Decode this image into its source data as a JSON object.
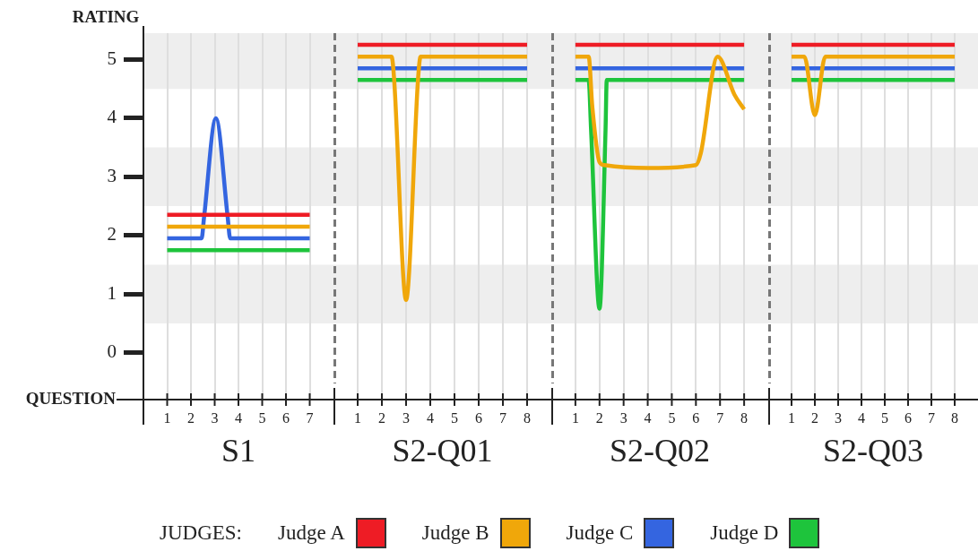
{
  "chart_data": [
    {
      "type": "line",
      "title": "S1",
      "ylabel": "RATING",
      "xlabel": "QUESTION",
      "legend_title": "JUDGES:",
      "legend": "bottom",
      "grid": "x",
      "line_style": "solid",
      "marker": "none",
      "xlim": [
        0,
        8
      ],
      "xticks": [
        1,
        2,
        3,
        4,
        5,
        6,
        7
      ],
      "ylim": [
        -0.8,
        5.45
      ],
      "yticks": [
        0,
        1,
        2,
        3,
        4,
        5
      ],
      "bands": [
        {
          "axis": "y",
          "from": 0.5,
          "to": 1.5,
          "color": "#eeeeee"
        },
        {
          "axis": "y",
          "from": 2.5,
          "to": 3.5,
          "color": "#eeeeee"
        },
        {
          "axis": "y",
          "from": 4.5,
          "to": 5.45,
          "color": "#eeeeee"
        }
      ],
      "series": [
        {
          "name": "Judge A",
          "color": "#ee1c25",
          "x": [
            1,
            7
          ],
          "values": [
            2.35,
            2.35
          ]
        },
        {
          "name": "Judge B",
          "color": "#f0a70a",
          "x": [
            1,
            7
          ],
          "values": [
            2.15,
            2.15
          ]
        },
        {
          "name": "Judge C",
          "color": "#3465e0",
          "x": [
            1,
            2.45,
            2.55,
            3.05,
            3.55,
            3.65,
            7
          ],
          "values": [
            1.95,
            1.95,
            2.3,
            4.0,
            2.3,
            1.95,
            1.95
          ]
        },
        {
          "name": "Judge D",
          "color": "#1ec43c",
          "x": [
            1,
            7
          ],
          "values": [
            1.75,
            1.75
          ]
        }
      ]
    },
    {
      "type": "line",
      "title": "S2-Q01",
      "grid": "x",
      "line_style": "solid",
      "marker": "none",
      "tick_labels": "x",
      "xlim": [
        0,
        9
      ],
      "xticks": [
        1,
        2,
        3,
        4,
        5,
        6,
        7,
        8
      ],
      "ylim": [
        -0.8,
        5.45
      ],
      "yticks": [
        0,
        1,
        2,
        3,
        4,
        5
      ],
      "bands": [
        {
          "axis": "y",
          "from": 0.5,
          "to": 1.5,
          "color": "#eeeeee"
        },
        {
          "axis": "y",
          "from": 2.5,
          "to": 3.5,
          "color": "#eeeeee"
        },
        {
          "axis": "y",
          "from": 4.5,
          "to": 5.45,
          "color": "#eeeeee"
        }
      ],
      "series": [
        {
          "color": "#ee1c25",
          "x": [
            1,
            8
          ],
          "values": [
            5.25,
            5.25
          ]
        },
        {
          "color": "#f0a70a",
          "x": [
            1,
            2.4,
            2.5,
            3,
            3.5,
            3.6,
            8
          ],
          "values": [
            5.05,
            5.05,
            4.7,
            0.9,
            4.7,
            5.05,
            5.05
          ]
        },
        {
          "color": "#3465e0",
          "x": [
            1,
            8
          ],
          "values": [
            4.85,
            4.85
          ]
        },
        {
          "color": "#1ec43c",
          "x": [
            1,
            8
          ],
          "values": [
            4.65,
            4.65
          ]
        }
      ]
    },
    {
      "type": "line",
      "title": "S2-Q02",
      "grid": "x",
      "line_style": "solid",
      "marker": "none",
      "tick_labels": "x",
      "xlim": [
        0,
        9
      ],
      "xticks": [
        1,
        2,
        3,
        4,
        5,
        6,
        7,
        8
      ],
      "ylim": [
        -0.8,
        5.45
      ],
      "yticks": [
        0,
        1,
        2,
        3,
        4,
        5
      ],
      "bands": [
        {
          "axis": "y",
          "from": 0.5,
          "to": 1.5,
          "color": "#eeeeee"
        },
        {
          "axis": "y",
          "from": 2.5,
          "to": 3.5,
          "color": "#eeeeee"
        },
        {
          "axis": "y",
          "from": 4.5,
          "to": 5.45,
          "color": "#eeeeee"
        }
      ],
      "series": [
        {
          "color": "#ee1c25",
          "x": [
            1,
            8
          ],
          "values": [
            5.25,
            5.25
          ]
        },
        {
          "color": "#f0a70a",
          "x": [
            1,
            1.55,
            1.7,
            2,
            2.2,
            4,
            6,
            6.2,
            6.9,
            7.6,
            8
          ],
          "values": [
            5.05,
            5.05,
            4.2,
            3.25,
            3.2,
            3.15,
            3.2,
            3.4,
            5.05,
            4.4,
            4.15
          ]
        },
        {
          "color": "#3465e0",
          "x": [
            1,
            8
          ],
          "values": [
            4.85,
            4.85
          ]
        },
        {
          "color": "#1ec43c",
          "x": [
            1,
            1.55,
            1.65,
            2,
            2.25,
            2.3,
            8
          ],
          "values": [
            4.65,
            4.65,
            3.8,
            0.75,
            3.8,
            4.65,
            4.65
          ]
        }
      ]
    },
    {
      "type": "line",
      "title": "S2-Q03",
      "grid": "x",
      "line_style": "solid",
      "marker": "none",
      "tick_labels": "x",
      "xlim": [
        0,
        9
      ],
      "xticks": [
        1,
        2,
        3,
        4,
        5,
        6,
        7,
        8
      ],
      "ylim": [
        -0.8,
        5.45
      ],
      "yticks": [
        0,
        1,
        2,
        3,
        4,
        5
      ],
      "bands": [
        {
          "axis": "y",
          "from": 0.5,
          "to": 1.5,
          "color": "#eeeeee"
        },
        {
          "axis": "y",
          "from": 2.5,
          "to": 3.5,
          "color": "#eeeeee"
        },
        {
          "axis": "y",
          "from": 4.5,
          "to": 5.45,
          "color": "#eeeeee"
        }
      ],
      "series": [
        {
          "color": "#ee1c25",
          "x": [
            1,
            8
          ],
          "values": [
            5.25,
            5.25
          ]
        },
        {
          "color": "#f0a70a",
          "x": [
            1,
            1.55,
            2,
            2.45,
            8
          ],
          "values": [
            5.05,
            5.05,
            4.05,
            5.05,
            5.05
          ]
        },
        {
          "color": "#3465e0",
          "x": [
            1,
            8
          ],
          "values": [
            4.85,
            4.85
          ]
        },
        {
          "color": "#1ec43c",
          "x": [
            1,
            8
          ],
          "values": [
            4.65,
            4.65
          ]
        }
      ]
    }
  ]
}
